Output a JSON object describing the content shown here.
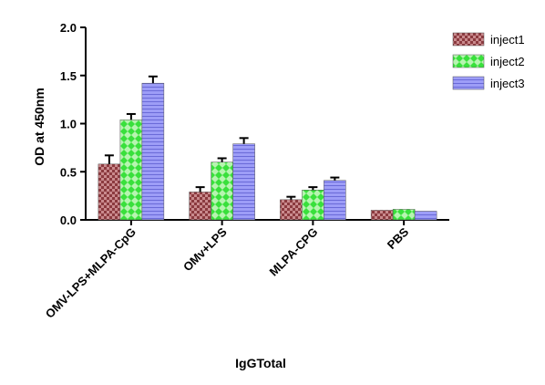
{
  "chart_data": {
    "type": "bar",
    "title": "",
    "xlabel": "IgGTotal",
    "ylabel": "OD at 450nm",
    "ylim": [
      0,
      2.0
    ],
    "yticks": [
      "0.0",
      "0.5",
      "1.0",
      "1.5",
      "2.0"
    ],
    "categories": [
      "OMV-LPS+MLPA-CpG",
      "OMv+LPS",
      "MLPA-CPG",
      "PBS"
    ],
    "series": [
      {
        "name": "inject1",
        "color": "#8b3a3f",
        "pattern": "checker",
        "values": [
          0.58,
          0.29,
          0.21,
          0.1
        ],
        "errors": [
          0.09,
          0.05,
          0.03,
          0.0
        ]
      },
      {
        "name": "inject2",
        "color": "#39e03c",
        "pattern": "diamond",
        "values": [
          1.04,
          0.6,
          0.31,
          0.11
        ],
        "errors": [
          0.06,
          0.04,
          0.03,
          0.0
        ]
      },
      {
        "name": "inject3",
        "color": "#8c8cf5",
        "pattern": "stripes",
        "values": [
          1.42,
          0.79,
          0.41,
          0.09
        ],
        "errors": [
          0.07,
          0.06,
          0.03,
          0.0
        ]
      }
    ],
    "legend_position": "top-right"
  }
}
